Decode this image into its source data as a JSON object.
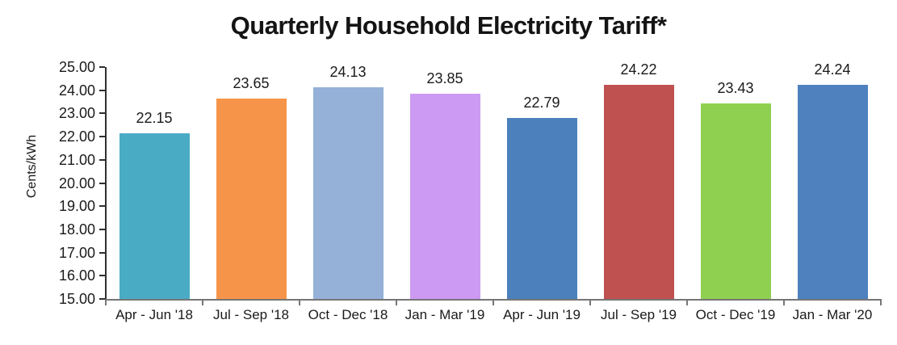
{
  "chart_data": {
    "type": "bar",
    "title": "Quarterly Household Electricity Tariff*",
    "xlabel": "",
    "ylabel": "Cents/kWh",
    "ylim": [
      15,
      25
    ],
    "ytick_step": 1,
    "ytick_labels": [
      "25.00",
      "24.00",
      "23.00",
      "22.00",
      "21.00",
      "20.00",
      "19.00",
      "18.00",
      "17.00",
      "16.00",
      "15.00"
    ],
    "grid": false,
    "legend": "none",
    "categories": [
      "Apr - Jun '18",
      "Jul - Sep '18",
      "Oct - Dec '18",
      "Jan - Mar '19",
      "Apr - Jun '19",
      "Jul - Sep '19",
      "Oct - Dec '19",
      "Jan - Mar '20"
    ],
    "values": [
      22.15,
      23.65,
      24.13,
      23.85,
      22.79,
      24.22,
      23.43,
      24.24
    ],
    "value_labels": [
      "22.15",
      "23.65",
      "24.13",
      "23.85",
      "22.79",
      "24.22",
      "23.43",
      "24.24"
    ],
    "bar_colors": [
      "#4AABC5",
      "#F6954A",
      "#95B1D8",
      "#CC99F3",
      "#4C80BC",
      "#BF5150",
      "#8FD050",
      "#4E81BE"
    ],
    "axis_colors": {
      "y_axis": "#2f2f2f",
      "x_axis": "#767676"
    },
    "text_color": "#1a1a1a"
  }
}
